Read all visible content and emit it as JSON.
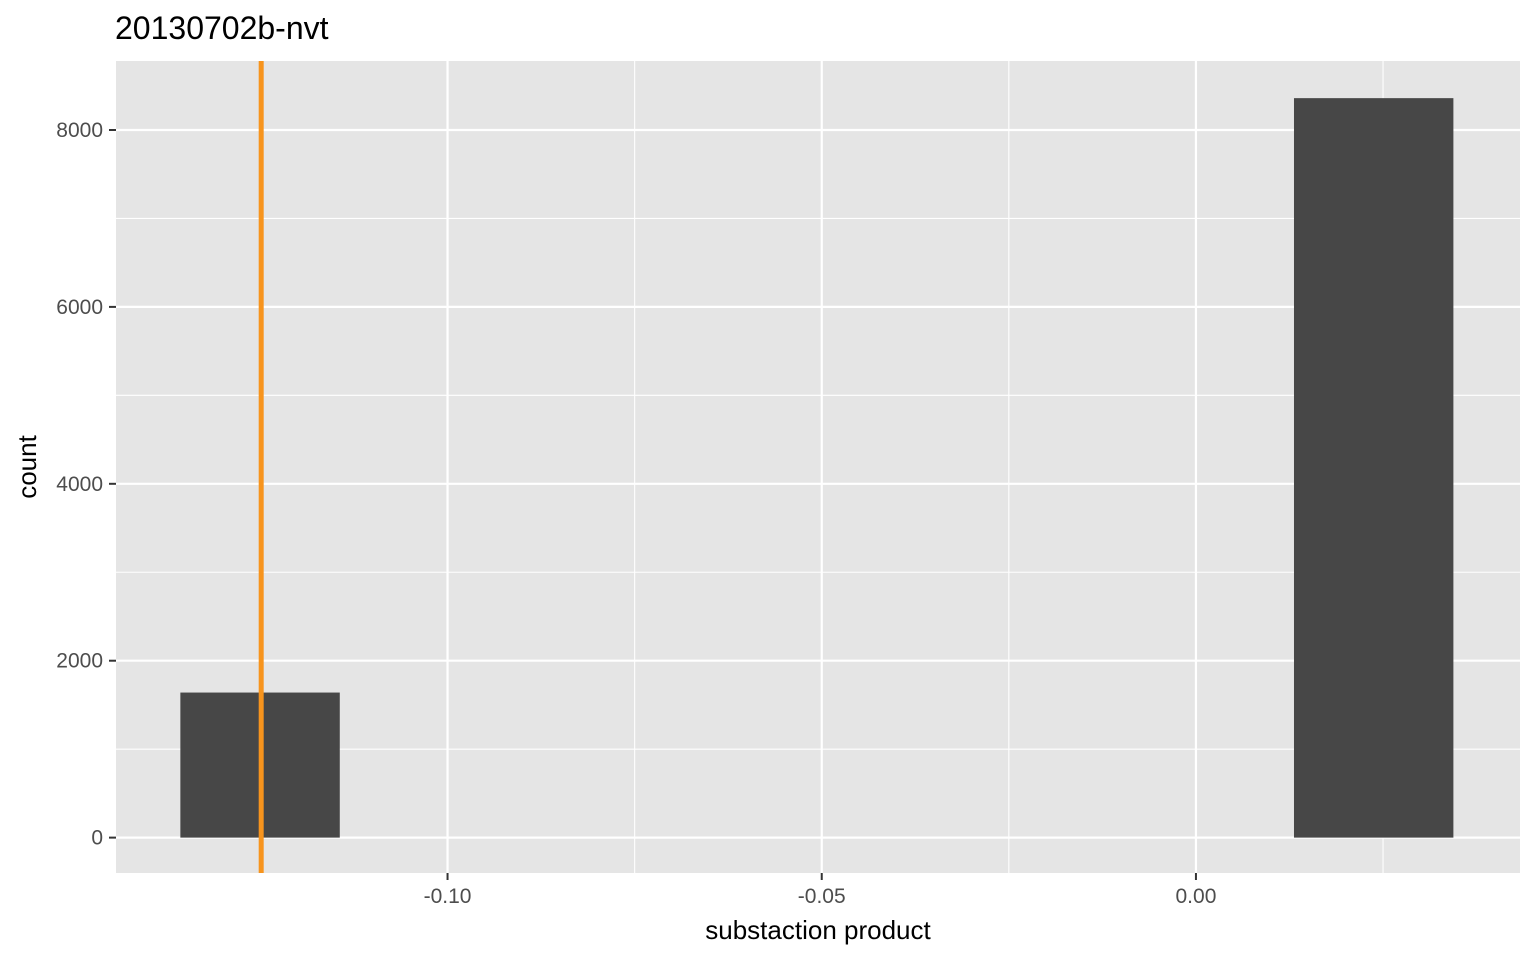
{
  "chart_data": {
    "type": "bar",
    "title": "20130702b-nvt",
    "xlabel": "substaction product",
    "ylabel": "count",
    "xlim": [
      -0.1443,
      0.0433
    ],
    "ylim": [
      -400,
      8780
    ],
    "x_ticks": [
      -0.1,
      -0.05,
      0.0
    ],
    "x_tick_labels": [
      "-0.10",
      "-0.05",
      "0.00"
    ],
    "y_ticks": [
      0,
      2000,
      4000,
      6000,
      8000
    ],
    "y_tick_labels": [
      "0",
      "2000",
      "4000",
      "6000",
      "8000"
    ],
    "grid": true,
    "bars": [
      {
        "x_start": -0.1357,
        "x_end": -0.1144,
        "value": 1640
      },
      {
        "x_start": 0.0131,
        "x_end": 0.0344,
        "value": 8360
      }
    ],
    "reference_line": {
      "x": -0.1249,
      "color": "#f7941d"
    },
    "colors": {
      "panel": "#e5e5e5",
      "grid": "#ffffff",
      "bar": "#474747",
      "reference_line": "#f7941d"
    }
  }
}
